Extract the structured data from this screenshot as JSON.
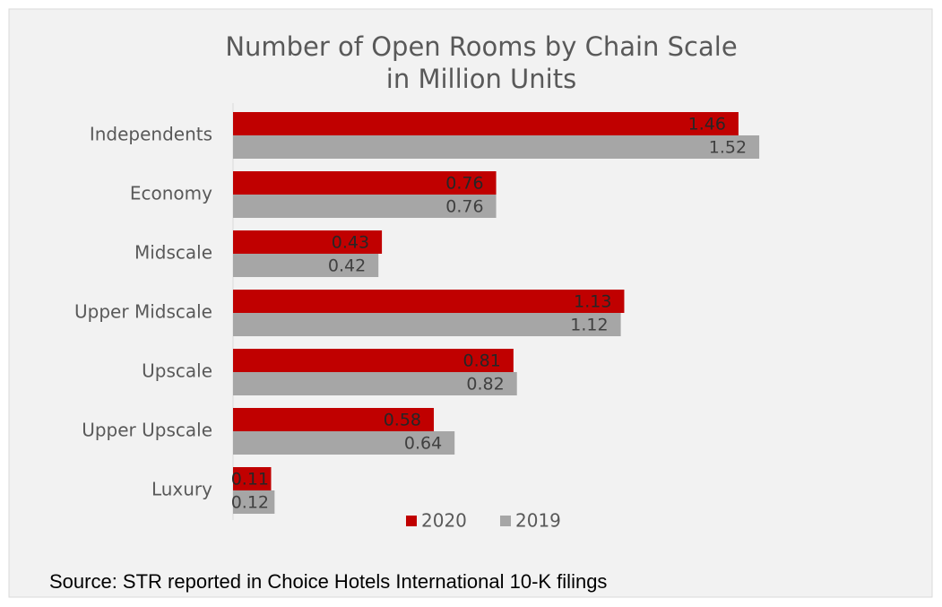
{
  "chart_data": {
    "type": "hbar",
    "title": "Number of Open Rooms by Chain Scale",
    "subtitle": "in Million Units",
    "categories": [
      "Independents",
      "Economy",
      "Midscale",
      "Upper Midscale",
      "Upscale",
      "Upper Upscale",
      "Luxury"
    ],
    "series": [
      {
        "name": "2020",
        "color": "#c00000",
        "values": [
          1.46,
          0.76,
          0.43,
          1.13,
          0.81,
          0.58,
          0.11
        ]
      },
      {
        "name": "2019",
        "color": "#a6a6a6",
        "values": [
          1.52,
          0.76,
          0.42,
          1.12,
          0.82,
          0.64,
          0.12
        ]
      }
    ],
    "xlim": [
      0,
      1.6
    ],
    "source": "Source: STR reported in Choice Hotels International 10-K filings"
  }
}
